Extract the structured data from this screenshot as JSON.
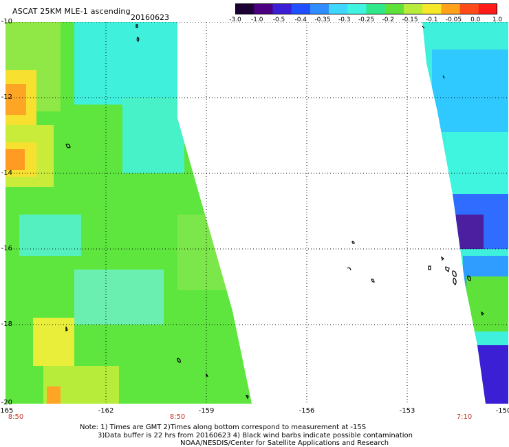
{
  "header": {
    "title": "ASCAT 25KM MLE-1 ascending",
    "date": "20160623"
  },
  "colorbar": {
    "labels": [
      "-3.0",
      "-1.0",
      "-0.5",
      "-0.4",
      "-0.35",
      "-0.3",
      "-0.25",
      "-0.2",
      "-0.15",
      "-0.1",
      "-0.05",
      "0.0",
      "1.0"
    ],
    "colors": [
      "#1a0033",
      "#4b0082",
      "#3b1fd4",
      "#1f4fff",
      "#2f8dff",
      "#3fd7ff",
      "#3ff5e0",
      "#2fe88a",
      "#5ee23a",
      "#b8ec3a",
      "#f5e82a",
      "#ffa21a",
      "#ff4a1a",
      "#ff1a1a"
    ]
  },
  "axes": {
    "lat_labels": [
      "-10",
      "-12",
      "-14",
      "-16",
      "-18",
      "-20"
    ],
    "lon_labels": [
      "-165",
      "-162",
      "-159",
      "-156",
      "-153",
      "-150"
    ]
  },
  "pass_times": [
    "8:50",
    "8:50",
    "7:10"
  ],
  "notes": {
    "line1": "Note: 1) Times are GMT 2)Times along bottom correspond to measurement at -15S",
    "line2": "3)Data buffer is 22 hrs from 20160623 4) Black wind barbs indicate possible contamination",
    "line3": "NOAA/NESDIS/Center for Satellite Applications and Research"
  }
}
